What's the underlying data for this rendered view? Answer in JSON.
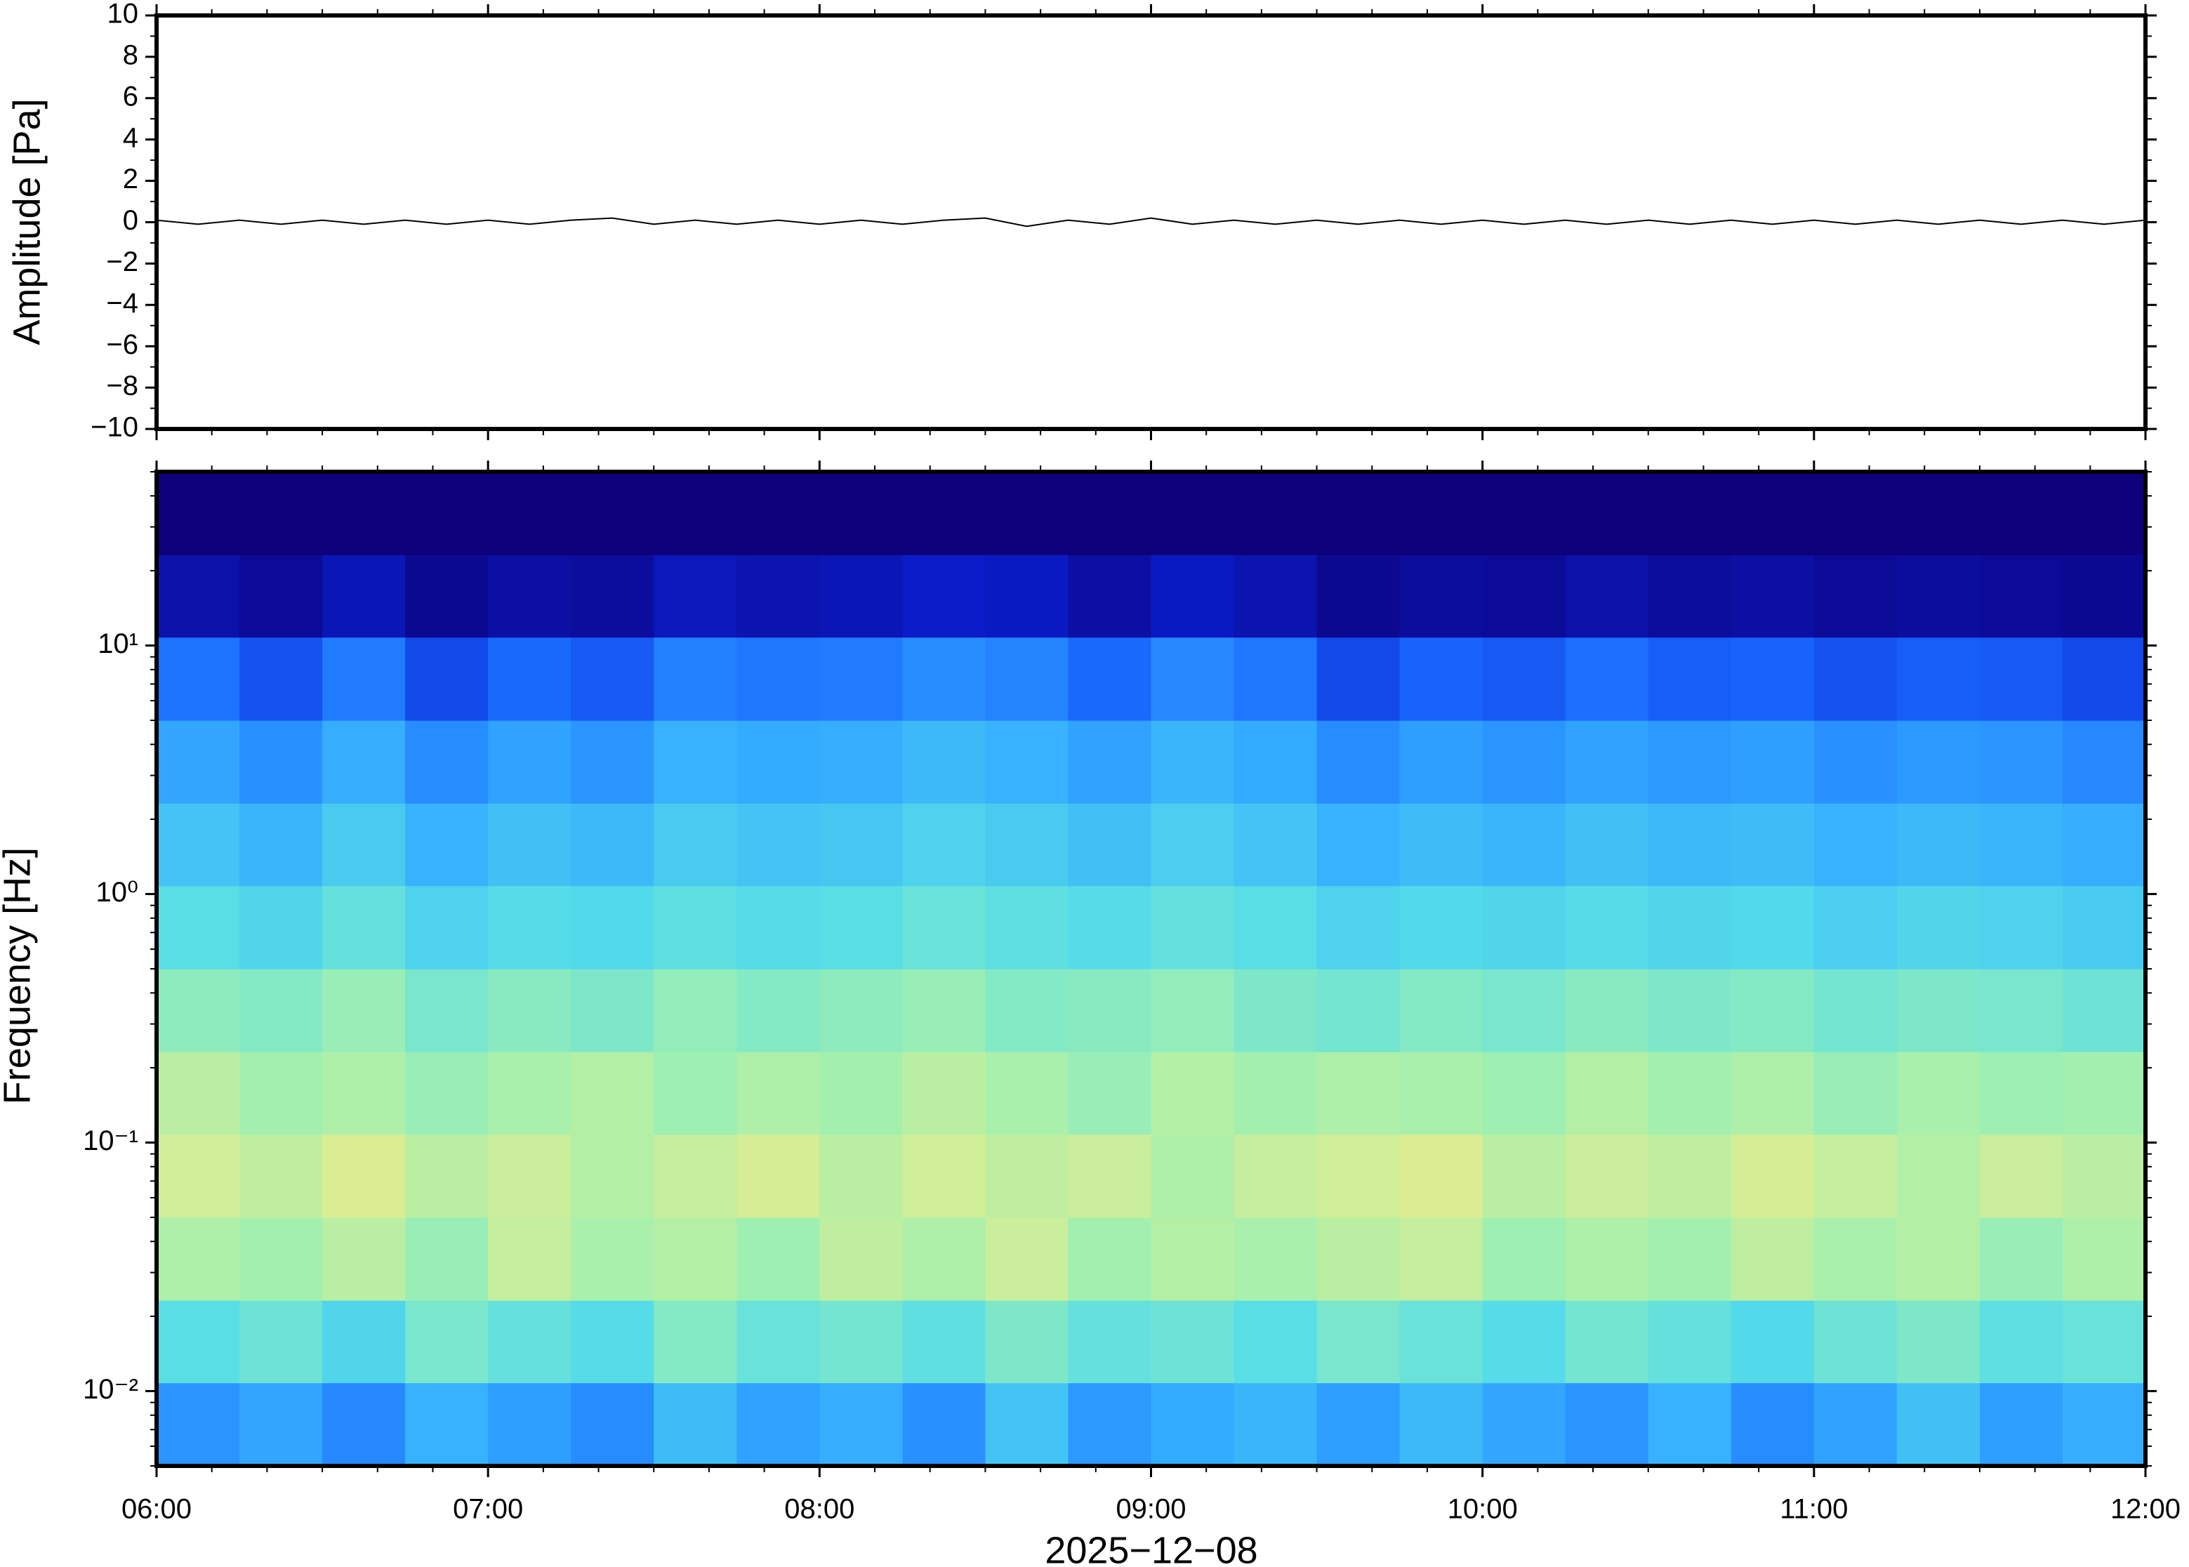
{
  "chart_data": [
    {
      "type": "line",
      "ylabel": "Amplitude [Pa]",
      "xlim": [
        6,
        12
      ],
      "ylim": [
        -10,
        10
      ],
      "yticks": [
        {
          "value": -10,
          "label": "−10"
        },
        {
          "value": -8,
          "label": "−8"
        },
        {
          "value": -6,
          "label": "−6"
        },
        {
          "value": -4,
          "label": "−4"
        },
        {
          "value": -2,
          "label": "−2"
        },
        0,
        2,
        4,
        6,
        8,
        10
      ],
      "color": "#000000",
      "x": [
        6,
        6.125,
        6.25,
        6.375,
        6.5,
        6.625,
        6.75,
        6.875,
        7,
        7.125,
        7.25,
        7.375,
        7.5,
        7.625,
        7.75,
        7.875,
        8,
        8.125,
        8.25,
        8.375,
        8.5,
        8.625,
        8.75,
        8.875,
        9,
        9.125,
        9.25,
        9.375,
        9.5,
        9.625,
        9.75,
        9.875,
        10,
        10.125,
        10.25,
        10.375,
        10.5,
        10.625,
        10.75,
        10.875,
        11,
        11.125,
        11.25,
        11.375,
        11.5,
        11.625,
        11.75,
        11.875,
        12
      ],
      "values": [
        0.1,
        -0.1,
        0.1,
        -0.1,
        0.1,
        -0.1,
        0.1,
        -0.1,
        0.1,
        -0.1,
        0.1,
        0.2,
        -0.1,
        0.1,
        -0.1,
        0.1,
        -0.1,
        0.1,
        -0.1,
        0.1,
        0.2,
        -0.2,
        0.1,
        -0.1,
        0.2,
        -0.1,
        0.1,
        -0.1,
        0.1,
        -0.1,
        0.1,
        -0.1,
        0.1,
        -0.1,
        0.1,
        -0.1,
        0.1,
        -0.1,
        0.1,
        -0.1,
        0.1,
        -0.1,
        0.1,
        -0.1,
        0.1,
        -0.1,
        0.1,
        -0.1,
        0.1
      ]
    },
    {
      "type": "spectrogram",
      "ylabel": "Frequency [Hz]",
      "xlabel": "2025−12−08",
      "xlim": [
        6,
        12
      ],
      "ylim": [
        0.005,
        50
      ],
      "log_y": true,
      "xticks": [
        {
          "value": 6,
          "label": "06:00"
        },
        {
          "value": 7,
          "label": "07:00"
        },
        {
          "value": 8,
          "label": "08:00"
        },
        {
          "value": 9,
          "label": "09:00"
        },
        {
          "value": 10,
          "label": "10:00"
        },
        {
          "value": 11,
          "label": "11:00"
        },
        {
          "value": 12,
          "label": "12:00"
        }
      ],
      "yticks": [
        {
          "value": 0.01,
          "label": "10⁻²"
        },
        {
          "value": 0.1,
          "label": "10⁻¹"
        },
        {
          "value": 1,
          "label": "10⁰"
        },
        {
          "value": 10,
          "label": "10¹"
        }
      ],
      "colormap": [
        "#0d0078",
        "#0a1fd0",
        "#1a6cff",
        "#33aaff",
        "#55dde8",
        "#a0f0b0",
        "#f0ec88",
        "#f5b060"
      ],
      "x_edges": [
        6,
        6.25,
        6.5,
        6.75,
        7,
        7.25,
        7.5,
        7.75,
        8,
        8.25,
        8.5,
        8.75,
        9,
        9.25,
        9.5,
        9.75,
        10,
        10.25,
        10.5,
        10.75,
        11,
        11.25,
        11.5,
        11.75,
        12
      ],
      "freq_edges": [
        0.005,
        0.0108,
        0.0232,
        0.05,
        0.108,
        0.232,
        0.5,
        1.08,
        2.32,
        5,
        10.8,
        23.2,
        50
      ],
      "values": [
        [
          0.38,
          0.42,
          0.35,
          0.45,
          0.4,
          0.36,
          0.48,
          0.41,
          0.44,
          0.37,
          0.5,
          0.39,
          0.43,
          0.46,
          0.4,
          0.47,
          0.42,
          0.38,
          0.45,
          0.36,
          0.41,
          0.49,
          0.4,
          0.44
        ],
        [
          0.58,
          0.62,
          0.55,
          0.64,
          0.6,
          0.57,
          0.66,
          0.61,
          0.63,
          0.59,
          0.65,
          0.6,
          0.62,
          0.58,
          0.64,
          0.61,
          0.57,
          0.63,
          0.6,
          0.56,
          0.62,
          0.65,
          0.59,
          0.61
        ],
        [
          0.74,
          0.72,
          0.76,
          0.7,
          0.78,
          0.73,
          0.75,
          0.71,
          0.77,
          0.74,
          0.79,
          0.72,
          0.75,
          0.73,
          0.76,
          0.78,
          0.71,
          0.74,
          0.72,
          0.77,
          0.73,
          0.75,
          0.7,
          0.74
        ],
        [
          0.8,
          0.77,
          0.82,
          0.76,
          0.79,
          0.75,
          0.78,
          0.81,
          0.76,
          0.8,
          0.77,
          0.79,
          0.74,
          0.78,
          0.8,
          0.82,
          0.76,
          0.79,
          0.77,
          0.81,
          0.78,
          0.75,
          0.79,
          0.76
        ],
        [
          0.76,
          0.72,
          0.74,
          0.7,
          0.73,
          0.75,
          0.71,
          0.74,
          0.72,
          0.76,
          0.73,
          0.7,
          0.75,
          0.72,
          0.74,
          0.73,
          0.71,
          0.75,
          0.72,
          0.74,
          0.7,
          0.73,
          0.71,
          0.72
        ],
        [
          0.68,
          0.66,
          0.7,
          0.64,
          0.67,
          0.65,
          0.69,
          0.66,
          0.68,
          0.7,
          0.66,
          0.67,
          0.69,
          0.65,
          0.63,
          0.66,
          0.64,
          0.67,
          0.65,
          0.66,
          0.63,
          0.65,
          0.64,
          0.62
        ],
        [
          0.58,
          0.55,
          0.6,
          0.54,
          0.57,
          0.56,
          0.59,
          0.57,
          0.58,
          0.61,
          0.59,
          0.57,
          0.6,
          0.58,
          0.54,
          0.56,
          0.55,
          0.57,
          0.55,
          0.56,
          0.53,
          0.55,
          0.54,
          0.52
        ],
        [
          0.5,
          0.46,
          0.52,
          0.45,
          0.49,
          0.47,
          0.52,
          0.5,
          0.51,
          0.54,
          0.52,
          0.49,
          0.53,
          0.5,
          0.45,
          0.48,
          0.46,
          0.49,
          0.47,
          0.48,
          0.45,
          0.47,
          0.46,
          0.44
        ],
        [
          0.42,
          0.37,
          0.44,
          0.36,
          0.41,
          0.38,
          0.45,
          0.43,
          0.44,
          0.47,
          0.45,
          0.41,
          0.46,
          0.43,
          0.36,
          0.4,
          0.38,
          0.41,
          0.39,
          0.4,
          0.37,
          0.39,
          0.38,
          0.35
        ],
        [
          0.3,
          0.24,
          0.32,
          0.22,
          0.28,
          0.25,
          0.33,
          0.31,
          0.32,
          0.36,
          0.34,
          0.28,
          0.35,
          0.31,
          0.22,
          0.27,
          0.25,
          0.29,
          0.26,
          0.27,
          0.24,
          0.26,
          0.25,
          0.22
        ],
        [
          0.08,
          0.05,
          0.1,
          0.04,
          0.07,
          0.06,
          0.11,
          0.09,
          0.1,
          0.13,
          0.12,
          0.07,
          0.12,
          0.09,
          0.04,
          0.06,
          0.05,
          0.08,
          0.06,
          0.07,
          0.05,
          0.06,
          0.05,
          0.04
        ],
        [
          0,
          0,
          0,
          0,
          0,
          0,
          0,
          0,
          0,
          0,
          0,
          0,
          0,
          0,
          0,
          0,
          0,
          0,
          0,
          0,
          0,
          0,
          0,
          0
        ]
      ]
    }
  ]
}
